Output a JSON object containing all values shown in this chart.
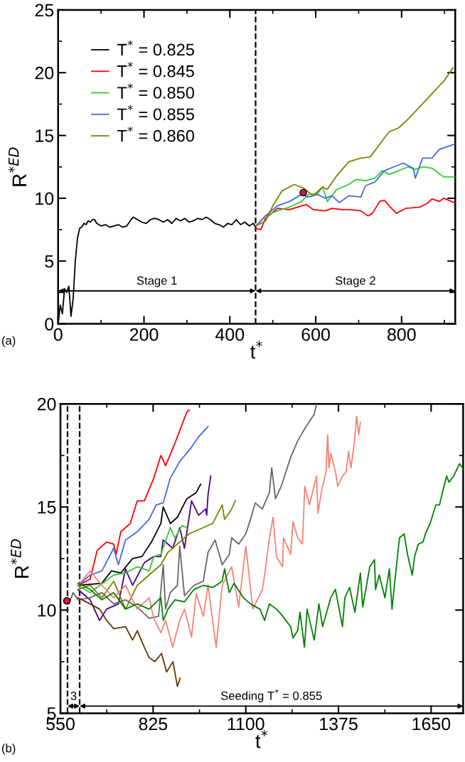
{
  "chart_data": [
    {
      "type": "line",
      "xlabel": "t$^{*}$",
      "ylabel": "R$^{*ED}$",
      "xlim": [
        0,
        925
      ],
      "ylim": [
        0,
        25
      ],
      "xticks": [
        0,
        200,
        400,
        600,
        800
      ],
      "yticks": [
        0,
        5,
        10,
        15,
        20,
        25
      ],
      "legend": "top left",
      "annotations": [
        "(a)",
        "Stage 1",
        "Stage 2"
      ],
      "ref_lines": [
        {
          "axis": "x",
          "value": 460,
          "color": "#000000",
          "line_style": "dashed"
        }
      ],
      "series": [
        {
          "name": "T$^{*}$ = 0.825",
          "color": "#000000",
          "x": [
            0,
            5,
            10,
            15,
            20,
            25,
            30,
            35,
            40,
            45,
            50,
            55,
            60,
            65,
            70,
            75,
            80,
            85,
            90,
            100,
            110,
            120,
            130,
            140,
            150,
            160,
            170,
            175,
            185,
            195,
            205,
            215,
            225,
            235,
            245,
            255,
            265,
            275,
            285,
            295,
            305,
            315,
            325,
            335,
            345,
            355,
            365,
            375,
            385,
            395,
            405,
            415,
            425,
            435,
            445,
            455,
            460
          ],
          "values": [
            0,
            1.5,
            0.8,
            2.8,
            2.5,
            3,
            0.6,
            2,
            5,
            6.8,
            7.6,
            7.7,
            8.0,
            7.9,
            8.2,
            8.1,
            8.3,
            8.3,
            8.0,
            7.8,
            7.9,
            7.7,
            7.8,
            7.9,
            7.7,
            7.8,
            8.3,
            8.5,
            8.3,
            8.1,
            8.0,
            8.3,
            8.4,
            8.3,
            8.1,
            8.3,
            8.0,
            8.4,
            8.2,
            8.4,
            8.1,
            8.2,
            8.4,
            8.3,
            8.5,
            8.3,
            8.0,
            7.9,
            7.7,
            8.0,
            7.9,
            8.3,
            7.9,
            8.1,
            7.8,
            8.0,
            7.7
          ]
        },
        {
          "name": "T$^{*}$ = 0.845",
          "color": "#ff0000",
          "x": [
            461,
            472,
            483,
            511,
            539,
            567,
            578,
            594,
            622,
            638,
            661,
            677,
            705,
            722,
            732,
            749,
            760,
            771,
            788,
            810,
            843,
            860,
            871,
            888,
            898,
            923
          ],
          "values": [
            7.6,
            7.5,
            8.4,
            9.2,
            9.1,
            9.4,
            9.5,
            9.1,
            9.0,
            9.2,
            9.1,
            9.1,
            9.0,
            8.6,
            8.8,
            9.75,
            9.85,
            9.4,
            8.8,
            9.2,
            9.3,
            9.6,
            9.95,
            9.75,
            10.0,
            9.65
          ]
        },
        {
          "name": "T$^{*}$ = 0.850",
          "color": "#33cc33",
          "x": [
            461,
            483,
            511,
            539,
            567,
            583,
            605,
            616,
            627,
            649,
            677,
            694,
            716,
            738,
            755,
            771,
            793,
            815,
            832,
            849,
            871,
            898,
            923
          ],
          "values": [
            7.8,
            8.6,
            9.0,
            9.3,
            9.75,
            10.3,
            10.4,
            10.9,
            9.75,
            10.7,
            11.1,
            11.5,
            11.4,
            11.6,
            12.2,
            11.9,
            12.2,
            12.5,
            12.3,
            12.5,
            12.4,
            11.7,
            11.7
          ]
        },
        {
          "name": "T$^{*}$ = 0.855",
          "color": "#4169e1",
          "x": [
            461,
            483,
            511,
            539,
            567,
            583,
            605,
            622,
            638,
            655,
            677,
            705,
            716,
            738,
            760,
            782,
            804,
            827,
            832,
            849,
            871,
            888,
            923
          ],
          "values": [
            7.8,
            8.6,
            9.4,
            9.75,
            10.3,
            10.1,
            10.3,
            10.0,
            10.2,
            9.65,
            10.2,
            10.1,
            11.0,
            11.3,
            12.2,
            12.5,
            12.8,
            12.4,
            11.6,
            13.2,
            13.2,
            13.9,
            14.3
          ]
        },
        {
          "name": "T$^{*}$ = 0.860",
          "color": "#808000",
          "x": [
            461,
            483,
            500,
            522,
            550,
            572,
            594,
            616,
            627,
            649,
            677,
            705,
            727,
            749,
            771,
            793,
            815,
            843,
            870,
            900,
            920
          ],
          "values": [
            7.8,
            8.2,
            9.4,
            10.6,
            11.1,
            10.8,
            10.2,
            10.9,
            10.7,
            11.8,
            12.9,
            13.2,
            13.3,
            14.3,
            15.3,
            15.6,
            16.3,
            17.3,
            18.3,
            19.4,
            20.4
          ]
        },
        {
          "type": "scatter",
          "marker": "circle",
          "color": "#dc143c",
          "x": [
            571
          ],
          "values": [
            10.45
          ]
        }
      ]
    },
    {
      "type": "line",
      "xlabel": "t$^{*}$",
      "ylabel": "R$^{*ED}$",
      "xlim": [
        550,
        1745
      ],
      "ylim": [
        5,
        20
      ],
      "xticks": [
        550,
        825,
        1100,
        1375,
        1650
      ],
      "yticks": [
        5,
        10,
        15,
        20
      ],
      "annotations": [
        "(b)",
        "3",
        "Seeding T$^{*}$ = 0.855"
      ],
      "ref_lines": [
        {
          "axis": "x",
          "value": 571,
          "color": "#000000",
          "line_style": "dashed"
        },
        {
          "axis": "x",
          "value": 607,
          "color": "#000000",
          "line_style": "dashed"
        }
      ],
      "series": [
        {
          "color": "#ff0000",
          "x": [
            602,
            638,
            659,
            687,
            708,
            715,
            729,
            757,
            778,
            799,
            827,
            848,
            862,
            890,
            911,
            925,
            932
          ],
          "values": [
            11.2,
            11.5,
            12.9,
            13.3,
            13.2,
            12.7,
            13.8,
            14.2,
            15.3,
            15.3,
            16.4,
            17.5,
            17.0,
            18.1,
            19.0,
            19.6,
            19.7
          ]
        },
        {
          "color": "#4169e1",
          "x": [
            602,
            638,
            673,
            708,
            722,
            743,
            778,
            813,
            834,
            855,
            876,
            904,
            939,
            960,
            988
          ],
          "values": [
            11.2,
            11.7,
            11.9,
            13.0,
            12.2,
            13.4,
            13.8,
            14.4,
            15.1,
            15.2,
            16.4,
            17.2,
            17.9,
            18.4,
            18.9
          ]
        },
        {
          "color": "#000000",
          "x": [
            602,
            673,
            701,
            729,
            764,
            792,
            820,
            848,
            855,
            876,
            897,
            925,
            953,
            966
          ],
          "values": [
            11.2,
            11.3,
            11.9,
            11.8,
            12.5,
            12.6,
            13.3,
            14.2,
            15.0,
            14.2,
            14.5,
            15.4,
            15.7,
            16.1
          ]
        },
        {
          "color": "#4b0082",
          "x": [
            602,
            638,
            666,
            687,
            722,
            743,
            764,
            799,
            827,
            848,
            855,
            883,
            904,
            918,
            939,
            960,
            981,
            984,
            988,
            996
          ],
          "values": [
            11.0,
            10.5,
            9.5,
            10.05,
            10.3,
            12.0,
            11.2,
            12.3,
            12.6,
            12.6,
            13.4,
            13.0,
            14.0,
            13.0,
            15.3,
            14.6,
            14.9,
            14.6,
            15.6,
            16.5
          ]
        },
        {
          "color": "#33cc33",
          "x": [
            602,
            638,
            708,
            743,
            778,
            813,
            827,
            848,
            876,
            890,
            911,
            925
          ],
          "values": [
            11.2,
            10.85,
            11.7,
            11.8,
            12.1,
            11.9,
            12.6,
            12.7,
            14.0,
            13.5,
            14.1,
            14.0
          ]
        },
        {
          "color": "#808000",
          "x": [
            602,
            638,
            673,
            708,
            743,
            778,
            813,
            848,
            869,
            904,
            932,
            974,
            1002,
            1030,
            1037,
            1058,
            1069
          ],
          "values": [
            11.0,
            11.2,
            10.6,
            11.4,
            10.05,
            11.2,
            11.7,
            12.2,
            12.8,
            13.3,
            13.7,
            14.0,
            14.2,
            15.1,
            14.4,
            14.9,
            15.3
          ]
        },
        {
          "color": "#666666",
          "x": [
            571,
            575,
            588,
            602,
            638,
            673,
            708,
            743,
            778,
            813,
            841,
            855,
            862,
            876,
            897,
            904,
            918,
            946,
            974,
            988,
            1009,
            1030,
            1051,
            1058,
            1079,
            1100,
            1114,
            1128,
            1149,
            1170,
            1177,
            1188,
            1205,
            1233,
            1254,
            1275,
            1303,
            1310
          ],
          "values": [
            10.45,
            10.3,
            10.85,
            10.5,
            10.6,
            10.85,
            10.3,
            10.5,
            10.15,
            9.6,
            9.7,
            12.2,
            10.05,
            10.85,
            11.2,
            13.1,
            10.7,
            11.2,
            11.4,
            12.8,
            13.4,
            12.2,
            12.7,
            13.5,
            13.2,
            13.7,
            14.4,
            15.2,
            14.9,
            15.7,
            16.9,
            15.4,
            16.0,
            17.4,
            18.2,
            18.8,
            19.5,
            20.0
          ]
        },
        {
          "color": "#fa8072",
          "x": [
            602,
            638,
            673,
            708,
            743,
            778,
            813,
            827,
            848,
            862,
            883,
            904,
            918,
            939,
            953,
            974,
            988,
            1012,
            1030,
            1058,
            1079,
            1100,
            1121,
            1149,
            1156,
            1170,
            1181,
            1191,
            1209,
            1212,
            1233,
            1240,
            1254,
            1268,
            1275,
            1289,
            1310,
            1314,
            1324,
            1338,
            1343,
            1347,
            1352,
            1366,
            1373,
            1387,
            1398,
            1405,
            1412,
            1422,
            1429,
            1435,
            1440
          ],
          "values": [
            11.2,
            11.9,
            11.2,
            10.6,
            11.2,
            10.05,
            10.6,
            9.6,
            8.9,
            9.5,
            8.2,
            9.5,
            10.05,
            8.7,
            10.8,
            9.7,
            11.2,
            8.2,
            11.2,
            12.1,
            10.15,
            13.1,
            10.05,
            11.0,
            11.7,
            13.5,
            14.5,
            12.6,
            12.1,
            13.5,
            12.7,
            14.3,
            13.5,
            13.2,
            16.0,
            15.1,
            16.5,
            14.7,
            15.7,
            16.7,
            18.5,
            16.9,
            17.6,
            16.7,
            16.0,
            16.5,
            16.7,
            17.7,
            16.9,
            18.1,
            19.4,
            18.5,
            19.1
          ]
        },
        {
          "color": "#008000",
          "x": [
            602,
            638,
            673,
            708,
            743,
            778,
            813,
            848,
            855,
            869,
            890,
            918,
            946,
            974,
            1002,
            1030,
            1037,
            1051,
            1065,
            1093,
            1114,
            1142,
            1156,
            1170,
            1191,
            1205,
            1233,
            1240,
            1254,
            1261,
            1274,
            1282,
            1303,
            1317,
            1328,
            1352,
            1366,
            1387,
            1394,
            1408,
            1424,
            1440,
            1447,
            1468,
            1482,
            1485,
            1496,
            1513,
            1526,
            1534,
            1541,
            1556,
            1570,
            1580,
            1594,
            1601,
            1612,
            1626,
            1633,
            1647,
            1664,
            1675,
            1682,
            1696,
            1703,
            1717,
            1734,
            1745
          ],
          "values": [
            11.3,
            11.0,
            10.5,
            10.85,
            10.05,
            10.3,
            10.05,
            10.6,
            9.5,
            10.05,
            10.5,
            10.4,
            11.0,
            11.2,
            11.1,
            11.4,
            12.0,
            10.85,
            11.3,
            10.6,
            10.3,
            10.05,
            9.5,
            10.3,
            10.05,
            9.8,
            9.2,
            8.65,
            9.0,
            9.9,
            8.2,
            10.05,
            8.55,
            10.3,
            9.2,
            10.6,
            11.0,
            9.2,
            10.6,
            11.1,
            9.9,
            11.8,
            10.15,
            12.1,
            12.45,
            11.0,
            11.7,
            10.6,
            12.0,
            10.05,
            11.2,
            13.5,
            13.7,
            12.7,
            11.7,
            12.6,
            13.2,
            13.3,
            13.7,
            14.2,
            15.1,
            15.1,
            15.6,
            16.5,
            16.2,
            16.5,
            17.1,
            16.85
          ]
        },
        {
          "color": "#663300",
          "x": [
            602,
            638,
            666,
            687,
            708,
            743,
            764,
            778,
            799,
            813,
            830,
            850,
            865,
            884,
            897,
            905
          ],
          "values": [
            10.6,
            10.3,
            10.05,
            9.5,
            9.1,
            9.2,
            8.55,
            9.0,
            8.2,
            7.7,
            7.5,
            7.9,
            7.0,
            7.5,
            6.3,
            6.7
          ]
        },
        {
          "type": "scatter",
          "marker": "circle",
          "color": "#dc143c",
          "x": [
            569
          ],
          "values": [
            10.45
          ]
        }
      ]
    }
  ]
}
